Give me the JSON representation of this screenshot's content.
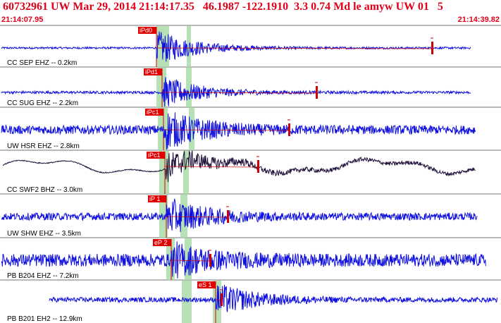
{
  "header": {
    "event_line": "60732961 UW Mar 29, 2014 21:14:17.35   46.1987 -122.1910  3.3 0.74 Md le amyw UW 01   5"
  },
  "time_axis": {
    "start_label": "21:14:07.95",
    "end_label": "21:14:39.82"
  },
  "colors": {
    "header_text": "#e0001a",
    "trace_blue": "#1010e0",
    "trace_dark": "#20103a",
    "pick_box": "#e00000",
    "window_band": "#a8dca8",
    "separator": "#707070",
    "coda_line": "#cc0000"
  },
  "traces": [
    {
      "label": "CC SEP EHZ -- 0.2km",
      "pick_text": "iPd0",
      "trace_color": "blue",
      "amplitude": 0.9,
      "noise": 0.05
    },
    {
      "label": "CC SUG EHZ -- 2.2km",
      "pick_text": "iPd1",
      "trace_color": "blue",
      "amplitude": 0.85,
      "noise": 0.07
    },
    {
      "label": "UW HSR EHZ -- 2.8km",
      "pick_text": "iPc1",
      "trace_color": "blue",
      "amplitude": 0.9,
      "noise": 0.22
    },
    {
      "label": "CC SWF2 BHZ -- 3.0km",
      "pick_text": "iPc1",
      "trace_color": "dark",
      "amplitude": 0.9,
      "noise": 0.12
    },
    {
      "label": "UW SHW EHZ -- 3.5km",
      "pick_text": "iP 1",
      "trace_color": "blue",
      "amplitude": 0.85,
      "noise": 0.18
    },
    {
      "label": "PB B204 EHZ -- 7.2km",
      "pick_text": "eP 2",
      "trace_color": "blue",
      "amplitude": 0.75,
      "noise": 0.32
    },
    {
      "label": "PB B201 EH2 -- 12.9km",
      "pick_text": "eS 1",
      "trace_color": "blue",
      "amplitude": 0.8,
      "noise": 0.12
    }
  ]
}
